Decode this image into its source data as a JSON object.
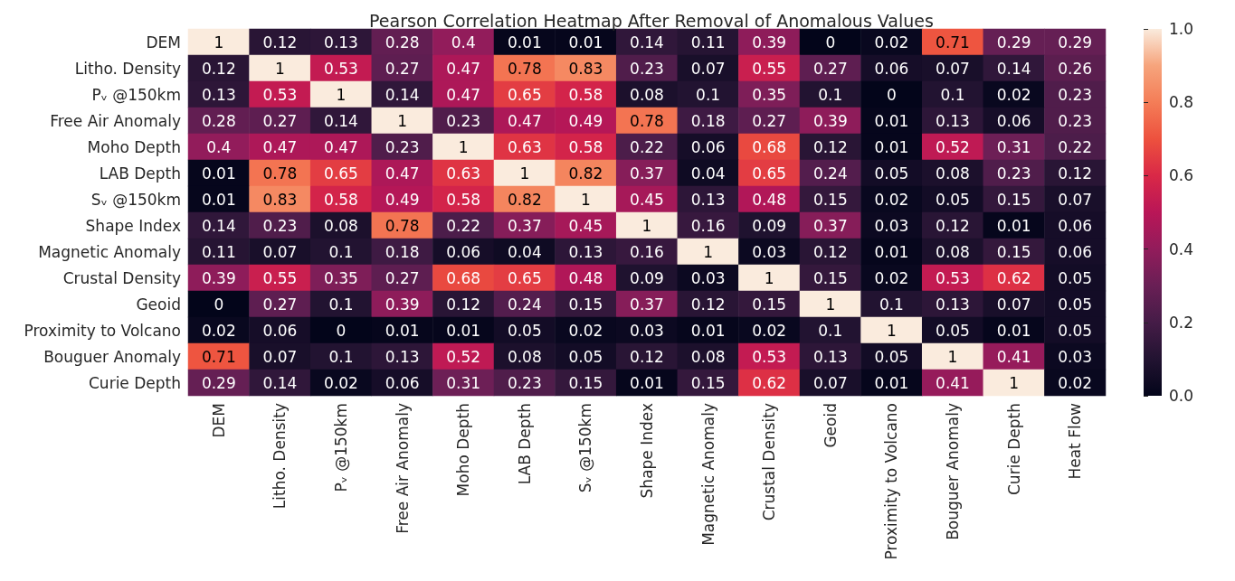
{
  "chart_data": {
    "type": "heatmap",
    "title": "Pearson Correlation Heatmap After Removal of Anomalous Values",
    "categories": [
      "DEM",
      "Litho. Density",
      "Pᵥ @150km",
      "Free Air Anomaly",
      "Moho Depth",
      "LAB Depth",
      "Sᵥ @150km",
      "Shape Index",
      "Magnetic Anomaly",
      "Crustal Density",
      "Geoid",
      "Proximity to Volcano",
      "Bouguer Anomaly",
      "Curie Depth",
      "Heat Flow"
    ],
    "y_categories": [
      "DEM",
      "Litho. Density",
      "Pᵥ @150km",
      "Free Air Anomaly",
      "Moho Depth",
      "LAB Depth",
      "Sᵥ @150km",
      "Shape Index",
      "Magnetic Anomaly",
      "Crustal Density",
      "Geoid",
      "Proximity to Volcano",
      "Bouguer Anomaly",
      "Curie Depth"
    ],
    "cells": [
      [
        1,
        0.12,
        0.13,
        0.28,
        0.4,
        0.01,
        0.01,
        0.14,
        0.11,
        0.39,
        0,
        0.02,
        0.71,
        0.29,
        0.29
      ],
      [
        0.12,
        1,
        0.53,
        0.27,
        0.47,
        0.78,
        0.83,
        0.23,
        0.07,
        0.55,
        0.27,
        0.06,
        0.07,
        0.14,
        0.26
      ],
      [
        0.13,
        0.53,
        1,
        0.14,
        0.47,
        0.65,
        0.58,
        0.08,
        0.1,
        0.35,
        0.1,
        0,
        0.1,
        0.02,
        0.23
      ],
      [
        0.28,
        0.27,
        0.14,
        1,
        0.23,
        0.47,
        0.49,
        0.78,
        0.18,
        0.27,
        0.39,
        0.01,
        0.13,
        0.06,
        0.23
      ],
      [
        0.4,
        0.47,
        0.47,
        0.23,
        1,
        0.63,
        0.58,
        0.22,
        0.06,
        0.68,
        0.12,
        0.01,
        0.52,
        0.31,
        0.22
      ],
      [
        0.01,
        0.78,
        0.65,
        0.47,
        0.63,
        1,
        0.82,
        0.37,
        0.04,
        0.65,
        0.24,
        0.05,
        0.08,
        0.23,
        0.12
      ],
      [
        0.01,
        0.83,
        0.58,
        0.49,
        0.58,
        0.82,
        1,
        0.45,
        0.13,
        0.48,
        0.15,
        0.02,
        0.05,
        0.15,
        0.07
      ],
      [
        0.14,
        0.23,
        0.08,
        0.78,
        0.22,
        0.37,
        0.45,
        1,
        0.16,
        0.09,
        0.37,
        0.03,
        0.12,
        0.01,
        0.06
      ],
      [
        0.11,
        0.07,
        0.1,
        0.18,
        0.06,
        0.04,
        0.13,
        0.16,
        1,
        0.03,
        0.12,
        0.01,
        0.08,
        0.15,
        0.06
      ],
      [
        0.39,
        0.55,
        0.35,
        0.27,
        0.68,
        0.65,
        0.48,
        0.09,
        0.03,
        1,
        0.15,
        0.02,
        0.53,
        0.62,
        0.05
      ],
      [
        0,
        0.27,
        0.1,
        0.39,
        0.12,
        0.24,
        0.15,
        0.37,
        0.12,
        0.15,
        1,
        0.1,
        0.13,
        0.07,
        0.05
      ],
      [
        0.02,
        0.06,
        0,
        0.01,
        0.01,
        0.05,
        0.02,
        0.03,
        0.01,
        0.02,
        0.1,
        1,
        0.05,
        0.01,
        0.05
      ],
      [
        0.71,
        0.07,
        0.1,
        0.13,
        0.52,
        0.08,
        0.05,
        0.12,
        0.08,
        0.53,
        0.13,
        0.05,
        1,
        0.41,
        0.03
      ],
      [
        0.29,
        0.14,
        0.02,
        0.06,
        0.31,
        0.23,
        0.15,
        0.01,
        0.15,
        0.62,
        0.07,
        0.01,
        0.41,
        1,
        0.02
      ]
    ],
    "data_labels": true,
    "clim": [
      0,
      1
    ],
    "cticks": [
      {
        "value": 0,
        "label": "0.0"
      },
      {
        "value": 0.2,
        "label": "0.2"
      },
      {
        "value": 0.4,
        "label": "0.4"
      },
      {
        "value": 0.6,
        "label": "0.6"
      },
      {
        "value": 0.8,
        "label": "0.8"
      },
      {
        "value": 1,
        "label": "1.0"
      }
    ]
  }
}
